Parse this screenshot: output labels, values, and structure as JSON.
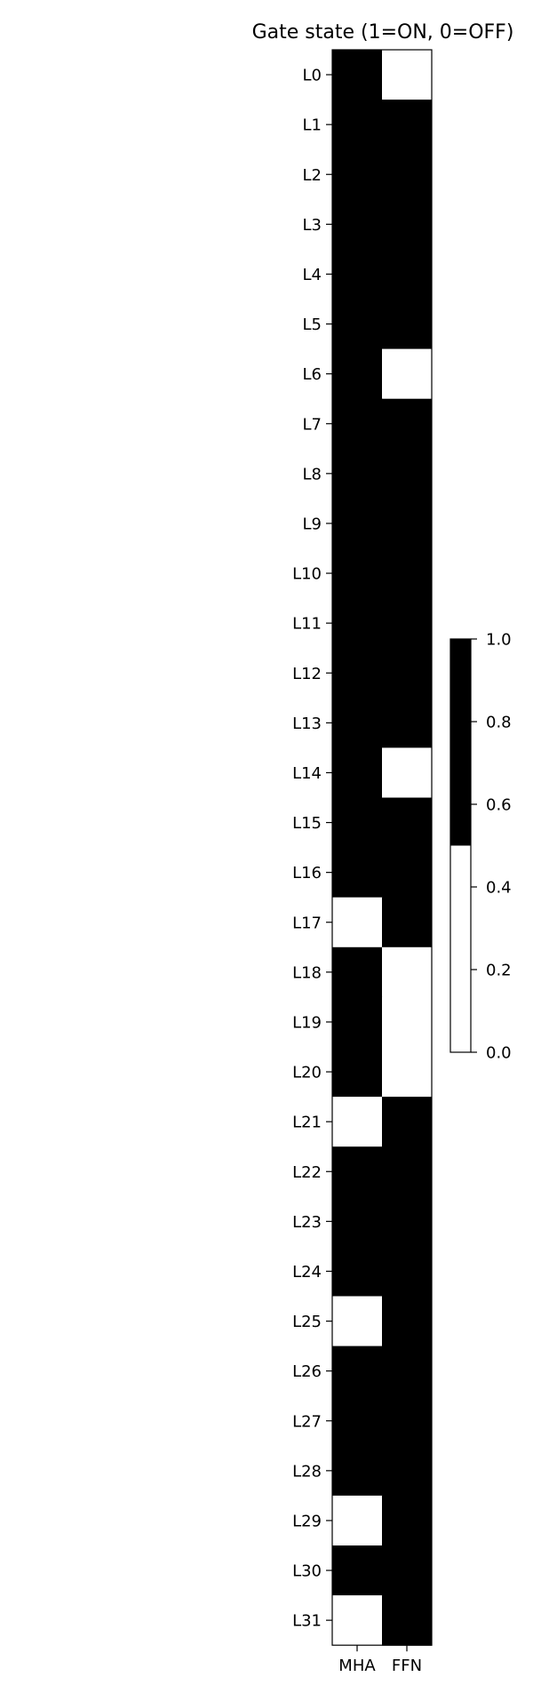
{
  "chart_data": {
    "type": "heatmap",
    "title": "Gate state (1=ON, 0=OFF)",
    "columns": [
      "MHA",
      "FFN"
    ],
    "rows": [
      "L0",
      "L1",
      "L2",
      "L3",
      "L4",
      "L5",
      "L6",
      "L7",
      "L8",
      "L9",
      "L10",
      "L11",
      "L12",
      "L13",
      "L14",
      "L15",
      "L16",
      "L17",
      "L18",
      "L19",
      "L20",
      "L21",
      "L22",
      "L23",
      "L24",
      "L25",
      "L26",
      "L27",
      "L28",
      "L29",
      "L30",
      "L31"
    ],
    "values": [
      [
        1,
        0
      ],
      [
        1,
        1
      ],
      [
        1,
        1
      ],
      [
        1,
        1
      ],
      [
        1,
        1
      ],
      [
        1,
        1
      ],
      [
        1,
        0
      ],
      [
        1,
        1
      ],
      [
        1,
        1
      ],
      [
        1,
        1
      ],
      [
        1,
        1
      ],
      [
        1,
        1
      ],
      [
        1,
        1
      ],
      [
        1,
        1
      ],
      [
        1,
        0
      ],
      [
        1,
        1
      ],
      [
        1,
        1
      ],
      [
        0,
        1
      ],
      [
        1,
        0
      ],
      [
        1,
        0
      ],
      [
        1,
        0
      ],
      [
        0,
        1
      ],
      [
        1,
        1
      ],
      [
        1,
        1
      ],
      [
        1,
        1
      ],
      [
        0,
        1
      ],
      [
        1,
        1
      ],
      [
        1,
        1
      ],
      [
        1,
        1
      ],
      [
        0,
        1
      ],
      [
        1,
        1
      ],
      [
        0,
        1
      ]
    ],
    "colorbar": {
      "ticks": [
        "0.0",
        "0.2",
        "0.4",
        "0.6",
        "0.8",
        "1.0"
      ],
      "range": [
        0,
        1
      ],
      "threshold": 0.5,
      "colors": {
        "on": "#000000",
        "off": "#ffffff"
      }
    }
  }
}
